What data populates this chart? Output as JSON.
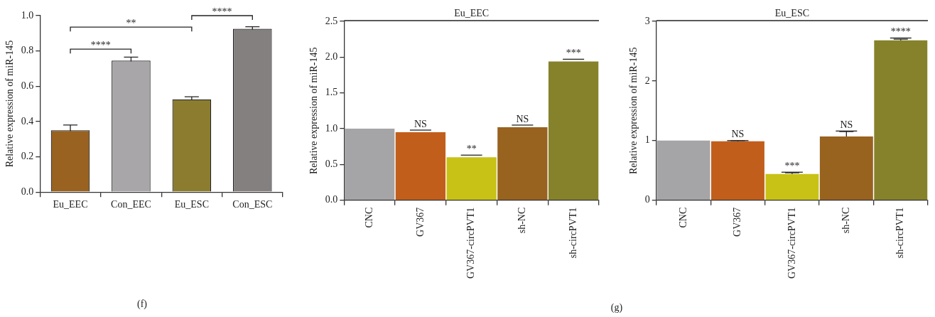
{
  "chart_data": [
    {
      "type": "bar",
      "ylabel": "Relative expression of miR-145",
      "categories": [
        "Eu_EEC",
        "Con_EEC",
        "Eu_ESC",
        "Con_ESC"
      ],
      "values": [
        0.35,
        0.745,
        0.525,
        0.925
      ],
      "errors": [
        0.03,
        0.02,
        0.015,
        0.012
      ],
      "colors": [
        "#9a6220",
        "#a8a6a8",
        "#8c7c30",
        "#858080"
      ],
      "ylim": [
        0,
        1.0
      ],
      "yticks": [
        {
          "value": 0,
          "label": "0.0"
        },
        0.2,
        0.4,
        0.6,
        0.8,
        {
          "value": 1,
          "label": "1.0"
        }
      ],
      "annotations": [
        "****",
        "**",
        "****",
        "(f)"
      ]
    },
    {
      "type": "bar",
      "ylabel": "Relative expression of miR-145",
      "categories": [
        "CNC",
        "GV367",
        "GV367-circPVT1",
        "sh-NC",
        "sh-circPVT1"
      ],
      "values": [
        1.0,
        0.95,
        0.6,
        1.02,
        1.94
      ],
      "colors": [
        "#a5a4a6",
        "#c25e1c",
        "#c8c217",
        "#98621f",
        "#85822b"
      ],
      "ylim": [
        0,
        2.5
      ],
      "yticks": [
        {
          "value": 0,
          "label": "0.0"
        },
        0.5,
        {
          "value": 1,
          "label": "1.0"
        },
        1.5,
        {
          "value": 2,
          "label": "2.0"
        },
        2.5
      ],
      "annotations": [
        "Eu_EEC",
        "(g)",
        {
          "text": "NS",
          "x": "GV367",
          "y": 0.98
        },
        {
          "text": "**",
          "x": "GV367-circPVT1",
          "y": 0.63
        },
        {
          "text": "NS",
          "x": "sh-NC",
          "y": 1.05
        },
        {
          "text": "***",
          "x": "sh-circPVT1",
          "y": 1.97
        }
      ]
    },
    {
      "type": "bar",
      "ylabel": "Relative expression of miR-145",
      "categories": [
        "CNC",
        "GV367",
        "GV367-circPVT1",
        "sh-NC",
        "sh-circPVT1"
      ],
      "values": [
        1.0,
        0.99,
        0.44,
        1.07,
        2.68
      ],
      "errors": [
        null,
        0.01,
        0.02,
        0.08,
        0.02
      ],
      "colors": [
        "#a5a4a6",
        "#c25e1c",
        "#c8c217",
        "#98621f",
        "#85822b"
      ],
      "ylim": [
        0,
        3
      ],
      "yticks": [
        0,
        1,
        2,
        3
      ],
      "annotations": [
        "Eu_ESC",
        {
          "text": "NS",
          "x": "GV367",
          "y": 1.0
        },
        {
          "text": "***",
          "x": "GV367-circPVT1",
          "y": 0.47
        },
        {
          "text": "NS",
          "x": "sh-NC",
          "y": 1.16
        },
        {
          "text": "****",
          "x": "sh-circPVT1",
          "y": 2.72
        }
      ]
    }
  ]
}
